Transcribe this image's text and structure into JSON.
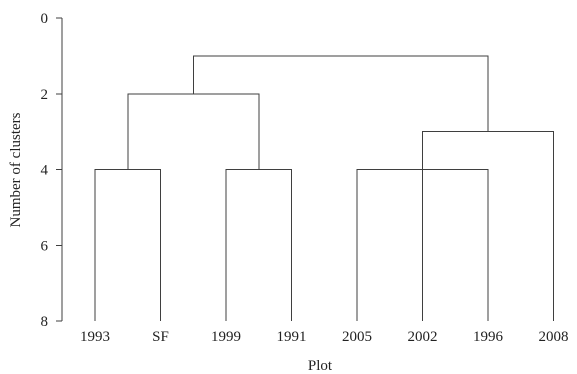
{
  "chart_data": {
    "type": "dendrogram",
    "xlabel": "Plot",
    "ylabel": "Number of clusters",
    "ylim": [
      0,
      8
    ],
    "yticks": [
      0,
      2,
      4,
      6,
      8
    ],
    "y_inverted": true,
    "leaves": [
      "1993",
      "SF",
      "1999",
      "1991",
      "2005",
      "2002",
      "1996",
      "2008"
    ],
    "merges": [
      {
        "left": [
          "1993"
        ],
        "right": [
          "SF"
        ],
        "height": 4
      },
      {
        "left": [
          "1999"
        ],
        "right": [
          "1991"
        ],
        "height": 4
      },
      {
        "left": [
          "2005"
        ],
        "right": [
          "1996"
        ],
        "height": 4
      },
      {
        "left": [
          "2002"
        ],
        "right": [
          "2008"
        ],
        "height": 3
      },
      {
        "left": [
          "1993",
          "SF"
        ],
        "right": [
          "1999",
          "1991"
        ],
        "height": 2
      },
      {
        "left": [
          "1993",
          "SF",
          "1999",
          "1991"
        ],
        "right": [
          "2002",
          "2008"
        ],
        "height": 1
      }
    ],
    "grid": false,
    "legend": "none"
  }
}
